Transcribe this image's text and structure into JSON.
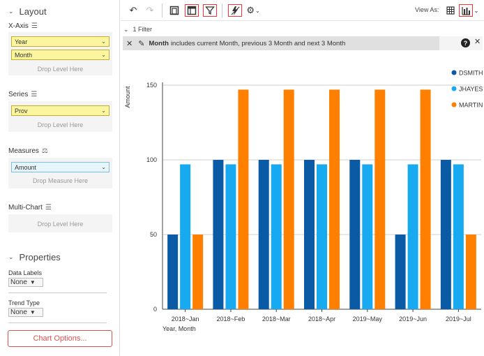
{
  "layout": {
    "title": "Layout",
    "xaxis_label": "X-Axis",
    "xaxis_levels": [
      "Year",
      "Month"
    ],
    "drop_level": "Drop Level Here",
    "series_label": "Series",
    "series_levels": [
      "Prov"
    ],
    "measures_label": "Measures",
    "measures": [
      "Amount"
    ],
    "drop_measure": "Drop Measure Here",
    "multichart_label": "Multi-Chart"
  },
  "properties": {
    "title": "Properties",
    "data_labels_label": "Data Labels",
    "data_labels_value": "None",
    "trend_type_label": "Trend Type",
    "trend_type_value": "None",
    "chart_options": "Chart Options..."
  },
  "toolbar": {
    "view_as": "View As:"
  },
  "filter": {
    "count_label": "1 Filter",
    "field": "Month",
    "text": "includes current Month, previous 3 Month and next 3 Month"
  },
  "colors": {
    "DSMITH": "#0a5aa6",
    "JHAYES": "#18aaf0",
    "MARTIN": "#ff7f00"
  },
  "chart_data": {
    "type": "bar",
    "title": "",
    "xlabel": "Year, Month",
    "ylabel": "Amount",
    "ylim": [
      0,
      150
    ],
    "yticks": [
      0,
      50,
      100,
      150
    ],
    "categories": [
      "2018~Jan",
      "2018~Feb",
      "2018~Mar",
      "2018~Apr",
      "2019~May",
      "2019~Jun",
      "2019~Jul"
    ],
    "series": [
      {
        "name": "DSMITH",
        "values": [
          50,
          100,
          100,
          100,
          100,
          50,
          100
        ]
      },
      {
        "name": "JHAYES",
        "values": [
          97,
          97,
          97,
          97,
          97,
          97,
          97
        ]
      },
      {
        "name": "MARTIN",
        "values": [
          50,
          147,
          147,
          147,
          147,
          147,
          50
        ]
      }
    ],
    "legend": "right"
  }
}
